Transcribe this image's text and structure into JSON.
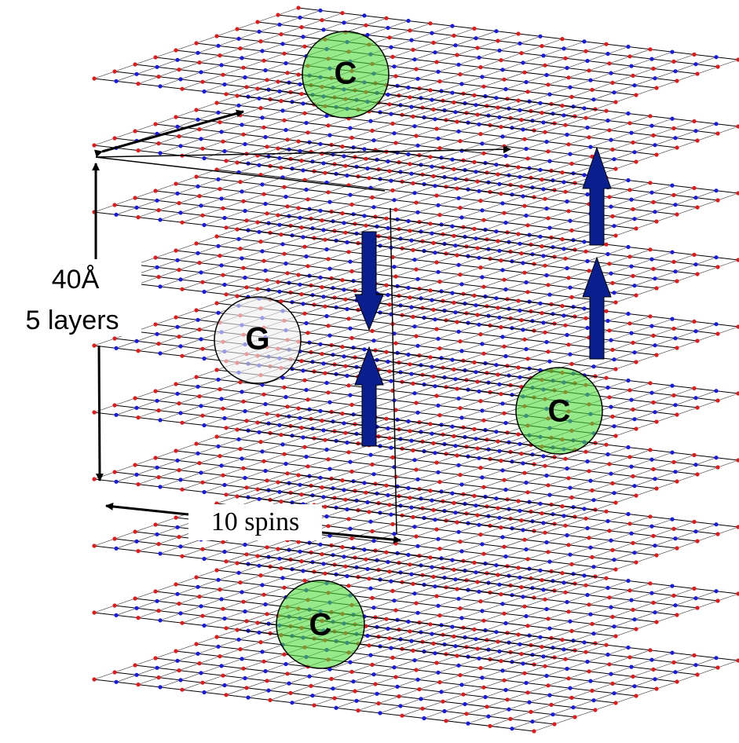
{
  "circles": [
    {
      "label": "C"
    },
    {
      "label": "G"
    },
    {
      "label": "C"
    },
    {
      "label": "C"
    }
  ],
  "annotations": {
    "height": "40Å",
    "layers": "5 layers",
    "spins": "10 spins"
  }
}
